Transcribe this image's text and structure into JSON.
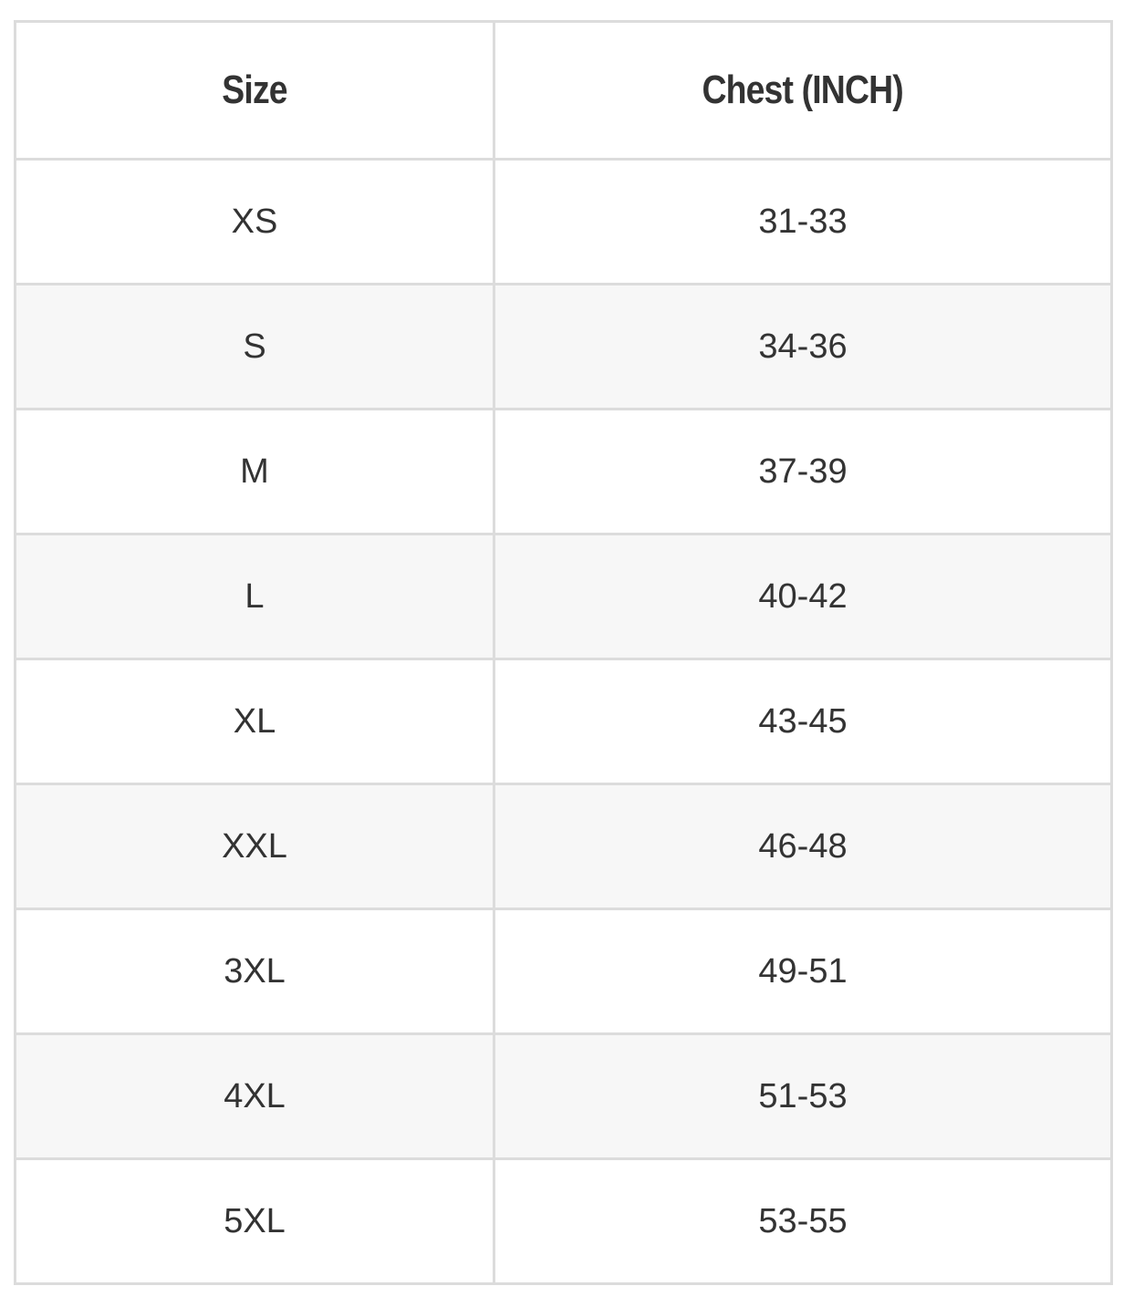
{
  "table": {
    "header": [
      "Size",
      "Chest (INCH)"
    ],
    "rows": [
      [
        "XS",
        "31-33"
      ],
      [
        "S",
        "34-36"
      ],
      [
        "M",
        "37-39"
      ],
      [
        "L",
        "40-42"
      ],
      [
        "XL",
        "43-45"
      ],
      [
        "XXL",
        "46-48"
      ],
      [
        "3XL",
        "49-51"
      ],
      [
        "4XL",
        "51-53"
      ],
      [
        "5XL",
        "53-55"
      ]
    ]
  }
}
